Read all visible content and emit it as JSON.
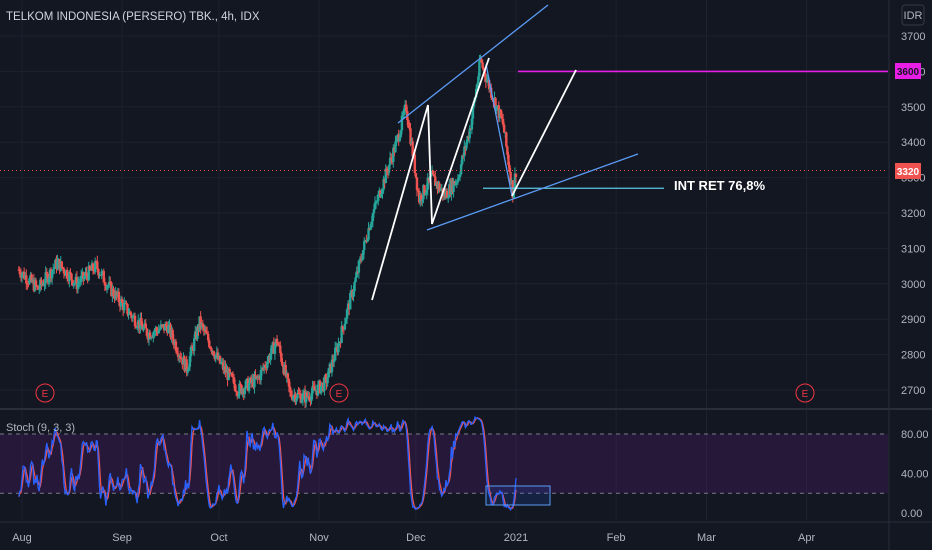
{
  "header": {
    "title": "TELKOM INDONESIA (PERSERO) TBK., 4h, IDX",
    "currency": "IDR"
  },
  "indicator": {
    "label": "Stoch (9, 3, 3)",
    "levels": [
      "80.00",
      "40.00",
      "0.00"
    ]
  },
  "annotation": {
    "retracement_label": "INT RET 76,8%"
  },
  "price_tags": {
    "target": "3600",
    "last": "3320"
  },
  "earnings_badges": [
    "E",
    "E",
    "E"
  ],
  "colors": {
    "background": "#131722",
    "up": "#26a69a",
    "down": "#ef5350",
    "stoch_k": "#2962ff",
    "stoch_d": "#ef5350",
    "stoch_band": "#7b1fa2",
    "trendline": "#5b9cf6",
    "magenta": "#e91ee6",
    "white_path": "#ffffff",
    "fib_line": "#5ec8e5"
  },
  "chart_data": {
    "type": "candlestick",
    "title": "TELKOM INDONESIA (PERSERO) TBK., 4h, IDX",
    "y_axis": {
      "ticks": [
        2700,
        2800,
        2900,
        3000,
        3100,
        3200,
        3300,
        3400,
        3500,
        3600,
        3700
      ],
      "range": [
        2650,
        3750
      ]
    },
    "x_axis": {
      "ticks": [
        "Aug",
        "Sep",
        "Oct",
        "Nov",
        "Dec",
        "2021",
        "Feb",
        "Mar",
        "Apr"
      ]
    },
    "price_path": [
      [
        "2020-07-31",
        3040
      ],
      [
        "2020-08-06",
        2985
      ],
      [
        "2020-08-12",
        3060
      ],
      [
        "2020-08-18",
        3000
      ],
      [
        "2020-08-24",
        3050
      ],
      [
        "2020-08-28",
        2990
      ],
      [
        "2020-09-03",
        2920
      ],
      [
        "2020-09-09",
        2860
      ],
      [
        "2020-09-15",
        2880
      ],
      [
        "2020-09-21",
        2760
      ],
      [
        "2020-09-25",
        2890
      ],
      [
        "2020-10-01",
        2780
      ],
      [
        "2020-10-07",
        2700
      ],
      [
        "2020-10-13",
        2730
      ],
      [
        "2020-10-19",
        2840
      ],
      [
        "2020-10-23",
        2690
      ],
      [
        "2020-10-28",
        2680
      ],
      [
        "2020-11-03",
        2720
      ],
      [
        "2020-11-07",
        2830
      ],
      [
        "2020-11-12",
        3000
      ],
      [
        "2020-11-17",
        3180
      ],
      [
        "2020-11-21",
        3290
      ],
      [
        "2020-11-25",
        3400
      ],
      [
        "2020-11-28",
        3500
      ],
      [
        "2020-12-02",
        3240
      ],
      [
        "2020-12-06",
        3300
      ],
      [
        "2020-12-10",
        3250
      ],
      [
        "2020-12-14",
        3300
      ],
      [
        "2020-12-18",
        3450
      ],
      [
        "2020-12-21",
        3630
      ],
      [
        "2020-12-24",
        3550
      ],
      [
        "2020-12-28",
        3450
      ],
      [
        "2020-12-31",
        3260
      ],
      [
        "2021-01-01",
        3320
      ]
    ],
    "drawings": {
      "horizontal_level": 3600,
      "fib_level": 3270,
      "retracement_pct": "76,8%"
    },
    "stochastic": {
      "k": 9,
      "d": 3,
      "smooth": 3,
      "upper": 80,
      "middle": 40,
      "lower": 20,
      "range": [
        0,
        100
      ]
    },
    "legend": "none",
    "grid": true
  }
}
